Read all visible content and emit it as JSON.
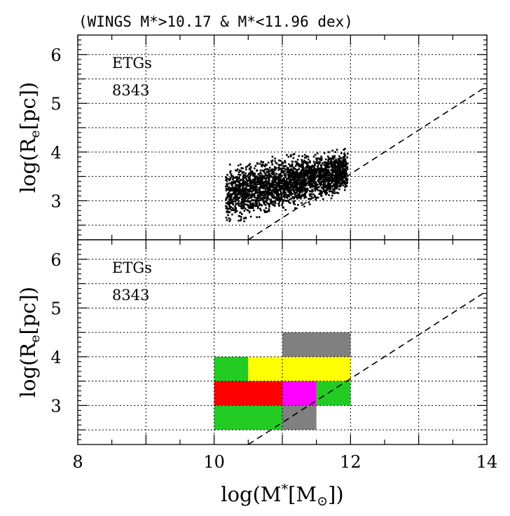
{
  "chart_data": [
    {
      "type": "scatter",
      "title": "(WINGS M*>10.17 & M*<11.96 dex)",
      "xlabel": "log(M*[M⊙])",
      "ylabel": "log(Re[pc])",
      "xlim": [
        8,
        14
      ],
      "ylim": [
        2.2,
        6.4
      ],
      "yticks": [
        3,
        4,
        5,
        6
      ],
      "grid": true,
      "annotation": {
        "label": "ETGs",
        "count": "8343"
      },
      "point_cloud": {
        "x_range": [
          10.17,
          11.96
        ],
        "y_range_at_low_mass": [
          2.35,
          3.85
        ],
        "y_range_at_high_mass": [
          3.1,
          4.15
        ],
        "n_points": 8343,
        "color": "#000000"
      },
      "reference_line": {
        "x": [
          10.5,
          14.0
        ],
        "y": [
          2.2,
          5.35
        ],
        "style": "dashed"
      }
    },
    {
      "type": "heatmap",
      "xlabel": "log(M*[M⊙])",
      "ylabel": "log(Re[pc])",
      "xlim": [
        8,
        14
      ],
      "ylim": [
        2.2,
        6.4
      ],
      "xticks": [
        8,
        10,
        12,
        14
      ],
      "yticks": [
        3,
        4,
        5,
        6
      ],
      "grid": true,
      "annotation": {
        "label": "ETGs",
        "count": "8343"
      },
      "bin_width_x": 0.5,
      "bin_height_y": 0.5,
      "cells": [
        {
          "x0": 10.0,
          "x1": 11.0,
          "y0": 2.5,
          "y1": 3.0,
          "color": "#22cc22"
        },
        {
          "x0": 11.0,
          "x1": 11.5,
          "y0": 2.5,
          "y1": 3.0,
          "color": "#808080"
        },
        {
          "x0": 10.0,
          "x1": 11.0,
          "y0": 3.0,
          "y1": 3.5,
          "color": "#ff0000"
        },
        {
          "x0": 11.0,
          "x1": 11.5,
          "y0": 3.0,
          "y1": 3.5,
          "color": "#ff00ff"
        },
        {
          "x0": 11.5,
          "x1": 12.0,
          "y0": 3.0,
          "y1": 3.5,
          "color": "#22cc22"
        },
        {
          "x0": 10.0,
          "x1": 10.5,
          "y0": 3.5,
          "y1": 4.0,
          "color": "#22cc22"
        },
        {
          "x0": 10.5,
          "x1": 12.0,
          "y0": 3.5,
          "y1": 4.0,
          "color": "#ffff00"
        },
        {
          "x0": 11.0,
          "x1": 12.0,
          "y0": 4.0,
          "y1": 4.5,
          "color": "#808080"
        }
      ],
      "reference_line": {
        "x": [
          10.5,
          14.0
        ],
        "y": [
          2.2,
          5.35
        ],
        "style": "dashed"
      }
    }
  ]
}
